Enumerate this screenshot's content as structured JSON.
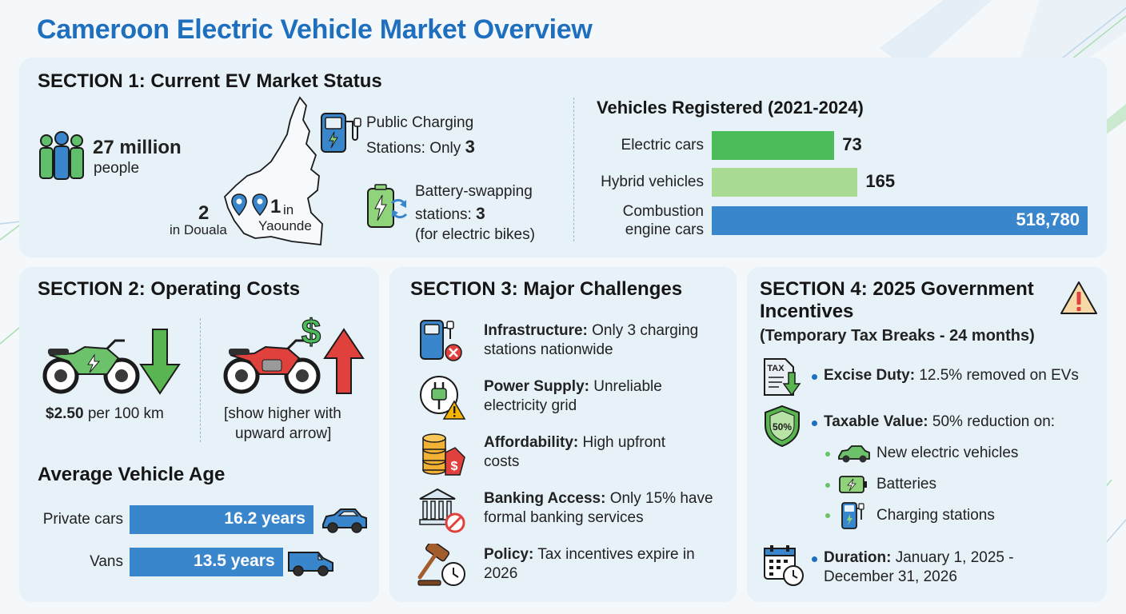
{
  "title": "Cameroon Electric Vehicle Market Overview",
  "colors": {
    "title_blue": "#1f6fbf",
    "electric_green": "#4cbb5a",
    "hybrid_green": "#a9dc92",
    "combustion_blue": "#3a86cc",
    "alert_red": "#e0413c"
  },
  "section1": {
    "title": "SECTION 1: Current EV Market Status",
    "population": {
      "value": "27 million",
      "label": "people",
      "icon": "people-icon"
    },
    "map_pins": {
      "douala_count": "2",
      "douala_label": "in Douala",
      "yaounde_count": "1",
      "yaounde_label_a": "in",
      "yaounde_label_b": "Yaounde"
    },
    "charging": {
      "line1": "Public Charging",
      "line2": "Stations: Only ",
      "count": "3",
      "icon": "charging-station-icon"
    },
    "swapping": {
      "line1": "Battery-swapping",
      "line2": "stations: ",
      "count": "3",
      "line3": "(for electric bikes)",
      "icon": "battery-swap-icon"
    },
    "chart_title": "Vehicles Registered (2021-2024)"
  },
  "chart_data": {
    "type": "bar",
    "orientation": "horizontal",
    "title": "Vehicles Registered (2021-2024)",
    "categories": [
      "Electric cars",
      "Hybrid vehicles",
      "Combustion engine cars"
    ],
    "category_lines": [
      [
        "Electric cars"
      ],
      [
        "Hybrid vehicles"
      ],
      [
        "Combustion",
        "engine cars"
      ]
    ],
    "values": [
      73,
      165,
      518780
    ],
    "value_labels": [
      "73",
      "165",
      "518,780"
    ],
    "colors": [
      "#4cbb5a",
      "#a9dc92",
      "#3a86cc"
    ]
  },
  "section2": {
    "title": "SECTION 2: Operating Costs",
    "electric_cost": {
      "amount": "$2.50",
      "unit": " per 100 km",
      "icon": "electric-motorbike-icon"
    },
    "fuel_cost": {
      "line1": "[show higher with",
      "line2": "upward arrow]",
      "icon": "fuel-motorbike-icon"
    },
    "age_title": "Average Vehicle Age",
    "ages": [
      {
        "label": "Private cars",
        "value": "16.2 years",
        "years": 16.2,
        "icon": "car-icon"
      },
      {
        "label": "Vans",
        "value": "13.5 years",
        "years": 13.5,
        "icon": "van-icon"
      }
    ]
  },
  "section3": {
    "title": "SECTION 3: Major Challenges",
    "items": [
      {
        "head": "Infrastructure:",
        "line1": " Only 3 charging",
        "line2": "stations nationwide",
        "icon": "charging-station-blocked-icon"
      },
      {
        "head": "Power Supply:",
        "line1": " Unreliable",
        "line2": "electricity grid",
        "icon": "power-plug-warning-icon"
      },
      {
        "head": "Affordability:",
        "line1": " High upfront",
        "line2": "costs",
        "icon": "coins-price-tag-icon"
      },
      {
        "head": "Banking Access:",
        "line1": " Only 15% have",
        "line2": "formal banking services",
        "icon": "bank-blocked-icon"
      },
      {
        "head": "Policy:",
        "line1": " Tax incentives expire in",
        "line2": "2026",
        "icon": "gavel-clock-icon"
      }
    ]
  },
  "section4": {
    "title_line1": "SECTION 4: 2025 Government",
    "title_line2": "Incentives",
    "subtitle": "(Temporary Tax Breaks - 24 months)",
    "excise": {
      "head": "Excise Duty:",
      "text": " 12.5% removed on EVs",
      "icon_text": "TAX",
      "icon": "tax-document-icon"
    },
    "taxable": {
      "head": "Taxable Value:",
      "text": " 50% reduction on:",
      "badge": "50%",
      "icon": "shield-percent-icon",
      "items": [
        {
          "label": "New electric vehicles",
          "icon": "electric-car-icon"
        },
        {
          "label": "Batteries",
          "icon": "battery-icon"
        },
        {
          "label": "Charging stations",
          "icon": "charging-station-icon"
        }
      ]
    },
    "duration": {
      "head": "Duration:",
      "line1": " January 1, 2025 -",
      "line2": "December 31, 2026",
      "icon": "calendar-clock-icon"
    },
    "warning_icon": "warning-icon"
  }
}
